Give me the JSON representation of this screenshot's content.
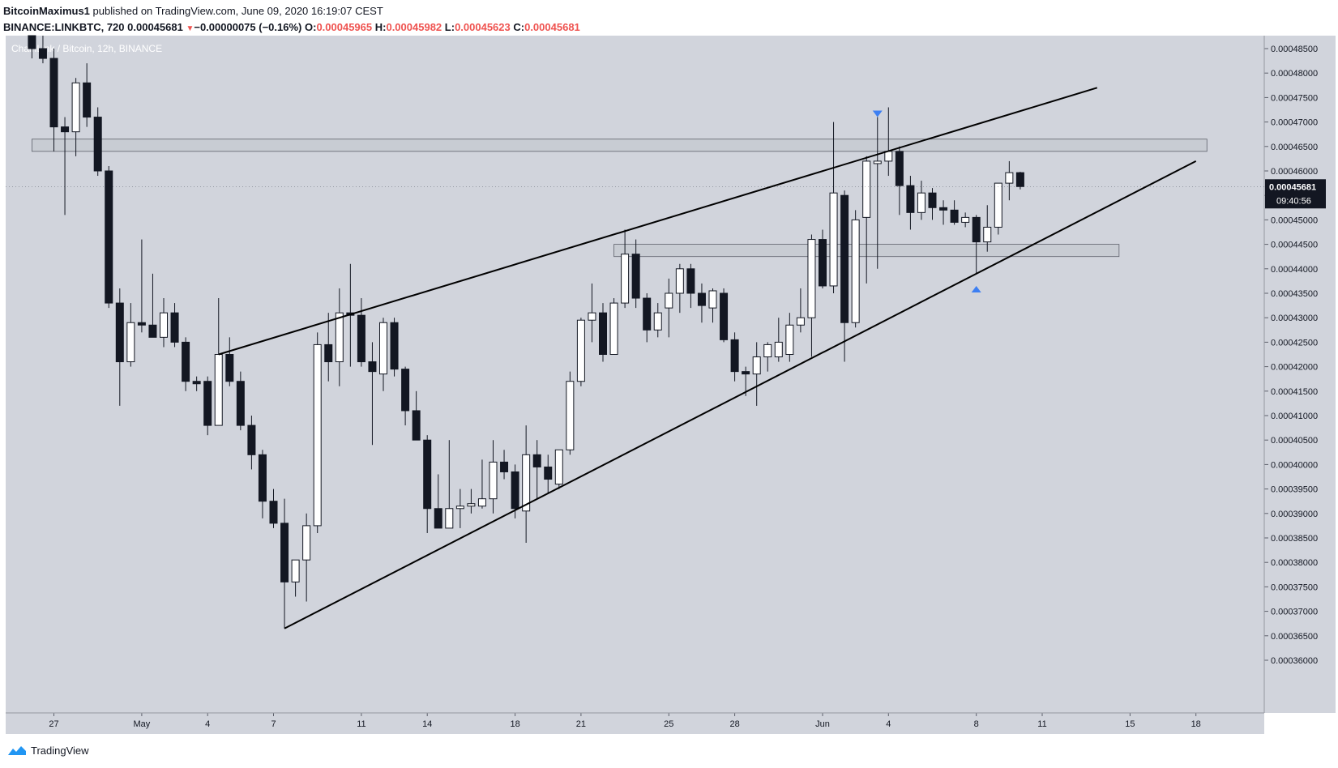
{
  "header": {
    "author": "BitcoinMaximus1",
    "published_text": "published on TradingView.com, June 09, 2020 16:19:07 CEST",
    "symbol": "BINANCE:LINKBTC, 720",
    "last": "0.00045681",
    "change": "−0.00000075 (−0.16%)",
    "o_label": "O:",
    "o": "0.00045965",
    "h_label": "H:",
    "h": "0.00045982",
    "l_label": "L:",
    "l": "0.00045623",
    "c_label": "C:",
    "c": "0.00045681"
  },
  "footer": {
    "brand": "TradingView"
  },
  "colors": {
    "background": "#d1d4dc",
    "bull": "#ffffff",
    "bear": "#131722",
    "marker": "#3d7ff2",
    "zone": "#c1c4cc",
    "red": "#ef5350"
  },
  "chart_data": {
    "type": "candlestick",
    "title": "ChainLink / Bitcoin, 12h, BINANCE",
    "interval": "12h",
    "ylim": [
      0.0003575,
      0.0004875
    ],
    "y_ticks": [
      "0.00048500",
      "0.00048000",
      "0.00047500",
      "0.00047000",
      "0.00046500",
      "0.00046000",
      "0.00045500",
      "0.00045000",
      "0.00044500",
      "0.00044000",
      "0.00043500",
      "0.00043000",
      "0.00042500",
      "0.00042000",
      "0.00041500",
      "0.00041000",
      "0.00040500",
      "0.00040000",
      "0.00039500",
      "0.00039000",
      "0.00038500",
      "0.00038000",
      "0.00037500",
      "0.00037000",
      "0.00036500",
      "0.00036000"
    ],
    "x_ticks": [
      {
        "label": "27",
        "date": "2020-04-27"
      },
      {
        "label": "May",
        "date": "2020-05-01"
      },
      {
        "label": "4",
        "date": "2020-05-04"
      },
      {
        "label": "7",
        "date": "2020-05-07"
      },
      {
        "label": "11",
        "date": "2020-05-11"
      },
      {
        "label": "14",
        "date": "2020-05-14"
      },
      {
        "label": "18",
        "date": "2020-05-18"
      },
      {
        "label": "21",
        "date": "2020-05-21"
      },
      {
        "label": "25",
        "date": "2020-05-25"
      },
      {
        "label": "28",
        "date": "2020-05-28"
      },
      {
        "label": "Jun",
        "date": "2020-06-01"
      },
      {
        "label": "4",
        "date": "2020-06-04"
      },
      {
        "label": "8",
        "date": "2020-06-08"
      },
      {
        "label": "11",
        "date": "2020-06-11"
      },
      {
        "label": "15",
        "date": "2020-06-15"
      },
      {
        "label": "18",
        "date": "2020-06-18"
      }
    ],
    "candles": [
      {
        "t": "2020-04-26 00:00",
        "o": 0.000489,
        "h": 0.00049,
        "l": 0.000483,
        "c": 0.000485
      },
      {
        "t": "2020-04-26 12:00",
        "o": 0.000485,
        "h": 0.00049,
        "l": 0.000482,
        "c": 0.000483
      },
      {
        "t": "2020-04-27 00:00",
        "o": 0.000483,
        "h": 0.000485,
        "l": 0.000464,
        "c": 0.000469
      },
      {
        "t": "2020-04-27 12:00",
        "o": 0.000469,
        "h": 0.000471,
        "l": 0.000451,
        "c": 0.000468
      },
      {
        "t": "2020-04-28 00:00",
        "o": 0.000468,
        "h": 0.000479,
        "l": 0.000463,
        "c": 0.000478
      },
      {
        "t": "2020-04-28 12:00",
        "o": 0.000478,
        "h": 0.000482,
        "l": 0.000469,
        "c": 0.000471
      },
      {
        "t": "2020-04-29 00:00",
        "o": 0.000471,
        "h": 0.000473,
        "l": 0.000459,
        "c": 0.00046
      },
      {
        "t": "2020-04-29 12:00",
        "o": 0.00046,
        "h": 0.000461,
        "l": 0.000432,
        "c": 0.000433
      },
      {
        "t": "2020-04-30 00:00",
        "o": 0.000433,
        "h": 0.000436,
        "l": 0.000412,
        "c": 0.000421
      },
      {
        "t": "2020-04-30 12:00",
        "o": 0.000421,
        "h": 0.000433,
        "l": 0.00042,
        "c": 0.000429
      },
      {
        "t": "2020-05-01 00:00",
        "o": 0.000429,
        "h": 0.000446,
        "l": 0.000427,
        "c": 0.0004285
      },
      {
        "t": "2020-05-01 12:00",
        "o": 0.0004285,
        "h": 0.000439,
        "l": 0.000426,
        "c": 0.000426
      },
      {
        "t": "2020-05-02 00:00",
        "o": 0.000426,
        "h": 0.000434,
        "l": 0.000424,
        "c": 0.000431
      },
      {
        "t": "2020-05-02 12:00",
        "o": 0.000431,
        "h": 0.000433,
        "l": 0.000424,
        "c": 0.000425
      },
      {
        "t": "2020-05-03 00:00",
        "o": 0.000425,
        "h": 0.000426,
        "l": 0.000415,
        "c": 0.000417
      },
      {
        "t": "2020-05-03 12:00",
        "o": 0.000417,
        "h": 0.000418,
        "l": 0.000415,
        "c": 0.0004165
      },
      {
        "t": "2020-05-04 00:00",
        "o": 0.000417,
        "h": 0.000418,
        "l": 0.000406,
        "c": 0.000408
      },
      {
        "t": "2020-05-04 12:00",
        "o": 0.000408,
        "h": 0.000434,
        "l": 0.000408,
        "c": 0.0004225
      },
      {
        "t": "2020-05-05 00:00",
        "o": 0.0004225,
        "h": 0.000426,
        "l": 0.000416,
        "c": 0.000417
      },
      {
        "t": "2020-05-05 12:00",
        "o": 0.000417,
        "h": 0.000419,
        "l": 0.000407,
        "c": 0.000408
      },
      {
        "t": "2020-05-06 00:00",
        "o": 0.000408,
        "h": 0.00041,
        "l": 0.000399,
        "c": 0.000402
      },
      {
        "t": "2020-05-06 12:00",
        "o": 0.000402,
        "h": 0.000403,
        "l": 0.000389,
        "c": 0.0003925
      },
      {
        "t": "2020-05-07 00:00",
        "o": 0.0003925,
        "h": 0.000395,
        "l": 0.000387,
        "c": 0.000388
      },
      {
        "t": "2020-05-07 12:00",
        "o": 0.000388,
        "h": 0.000393,
        "l": 0.0003665,
        "c": 0.000376
      },
      {
        "t": "2020-05-08 00:00",
        "o": 0.000376,
        "h": 0.00038,
        "l": 0.000373,
        "c": 0.0003805
      },
      {
        "t": "2020-05-08 12:00",
        "o": 0.0003805,
        "h": 0.00039,
        "l": 0.000372,
        "c": 0.0003875
      },
      {
        "t": "2020-05-09 00:00",
        "o": 0.0003875,
        "h": 0.000427,
        "l": 0.000386,
        "c": 0.0004245
      },
      {
        "t": "2020-05-09 12:00",
        "o": 0.0004245,
        "h": 0.000431,
        "l": 0.000417,
        "c": 0.000421
      },
      {
        "t": "2020-05-10 00:00",
        "o": 0.000421,
        "h": 0.000436,
        "l": 0.000416,
        "c": 0.000431
      },
      {
        "t": "2020-05-10 12:00",
        "o": 0.000431,
        "h": 0.000441,
        "l": 0.00042,
        "c": 0.0004305
      },
      {
        "t": "2020-05-11 00:00",
        "o": 0.0004305,
        "h": 0.000434,
        "l": 0.00042,
        "c": 0.000421
      },
      {
        "t": "2020-05-11 12:00",
        "o": 0.000421,
        "h": 0.000425,
        "l": 0.000404,
        "c": 0.000419
      },
      {
        "t": "2020-05-12 00:00",
        "o": 0.0004185,
        "h": 0.00043,
        "l": 0.000415,
        "c": 0.000429
      },
      {
        "t": "2020-05-12 12:00",
        "o": 0.000429,
        "h": 0.00043,
        "l": 0.000418,
        "c": 0.0004195
      },
      {
        "t": "2020-05-13 00:00",
        "o": 0.0004195,
        "h": 0.00042,
        "l": 0.000408,
        "c": 0.000411
      },
      {
        "t": "2020-05-13 12:00",
        "o": 0.000411,
        "h": 0.000415,
        "l": 0.000405,
        "c": 0.000405
      },
      {
        "t": "2020-05-14 00:00",
        "o": 0.000405,
        "h": 0.000406,
        "l": 0.000386,
        "c": 0.000391
      },
      {
        "t": "2020-05-14 12:00",
        "o": 0.000391,
        "h": 0.000398,
        "l": 0.000388,
        "c": 0.000387
      },
      {
        "t": "2020-05-15 00:00",
        "o": 0.000387,
        "h": 0.000405,
        "l": 0.000388,
        "c": 0.000391
      },
      {
        "t": "2020-05-15 12:00",
        "o": 0.000391,
        "h": 0.000395,
        "l": 0.000387,
        "c": 0.0003915
      },
      {
        "t": "2020-05-16 00:00",
        "o": 0.0003915,
        "h": 0.000395,
        "l": 0.00039,
        "c": 0.000392
      },
      {
        "t": "2020-05-16 12:00",
        "o": 0.0003915,
        "h": 0.000401,
        "l": 0.000391,
        "c": 0.000393
      },
      {
        "t": "2020-05-17 00:00",
        "o": 0.000393,
        "h": 0.000405,
        "l": 0.00039,
        "c": 0.0004005
      },
      {
        "t": "2020-05-17 12:00",
        "o": 0.0004005,
        "h": 0.000403,
        "l": 0.000397,
        "c": 0.0003985
      },
      {
        "t": "2020-05-18 00:00",
        "o": 0.0003985,
        "h": 0.0004,
        "l": 0.000389,
        "c": 0.000391
      },
      {
        "t": "2020-05-18 12:00",
        "o": 0.0003905,
        "h": 0.000408,
        "l": 0.000384,
        "c": 0.000402
      },
      {
        "t": "2020-05-19 00:00",
        "o": 0.000402,
        "h": 0.000405,
        "l": 0.000393,
        "c": 0.0003995
      },
      {
        "t": "2020-05-19 12:00",
        "o": 0.0003995,
        "h": 0.000402,
        "l": 0.000394,
        "c": 0.000397
      },
      {
        "t": "2020-05-20 00:00",
        "o": 0.000396,
        "h": 0.000403,
        "l": 0.000395,
        "c": 0.000403
      },
      {
        "t": "2020-05-20 12:00",
        "o": 0.000403,
        "h": 0.000419,
        "l": 0.000402,
        "c": 0.000417
      },
      {
        "t": "2020-05-21 00:00",
        "o": 0.000417,
        "h": 0.00043,
        "l": 0.000416,
        "c": 0.0004295
      },
      {
        "t": "2020-05-21 12:00",
        "o": 0.0004295,
        "h": 0.000437,
        "l": 0.000425,
        "c": 0.000431
      },
      {
        "t": "2020-05-22 00:00",
        "o": 0.000431,
        "h": 0.000433,
        "l": 0.000421,
        "c": 0.0004225
      },
      {
        "t": "2020-05-22 12:00",
        "o": 0.0004225,
        "h": 0.000434,
        "l": 0.000423,
        "c": 0.000433
      },
      {
        "t": "2020-05-23 00:00",
        "o": 0.000433,
        "h": 0.000448,
        "l": 0.000432,
        "c": 0.000443
      },
      {
        "t": "2020-05-23 12:00",
        "o": 0.000443,
        "h": 0.000446,
        "l": 0.000432,
        "c": 0.000434
      },
      {
        "t": "2020-05-24 00:00",
        "o": 0.000434,
        "h": 0.000435,
        "l": 0.000425,
        "c": 0.0004275
      },
      {
        "t": "2020-05-24 12:00",
        "o": 0.0004275,
        "h": 0.000433,
        "l": 0.000426,
        "c": 0.000431
      },
      {
        "t": "2020-05-25 00:00",
        "o": 0.000432,
        "h": 0.000438,
        "l": 0.000426,
        "c": 0.000435
      },
      {
        "t": "2020-05-25 12:00",
        "o": 0.000435,
        "h": 0.000441,
        "l": 0.000431,
        "c": 0.00044
      },
      {
        "t": "2020-05-26 00:00",
        "o": 0.00044,
        "h": 0.000441,
        "l": 0.000432,
        "c": 0.000435
      },
      {
        "t": "2020-05-26 12:00",
        "o": 0.000435,
        "h": 0.000437,
        "l": 0.000429,
        "c": 0.0004325
      },
      {
        "t": "2020-05-27 00:00",
        "o": 0.000432,
        "h": 0.000436,
        "l": 0.000429,
        "c": 0.0004355
      },
      {
        "t": "2020-05-27 12:00",
        "o": 0.000435,
        "h": 0.000436,
        "l": 0.000425,
        "c": 0.0004255
      },
      {
        "t": "2020-05-28 00:00",
        "o": 0.0004255,
        "h": 0.000427,
        "l": 0.000417,
        "c": 0.000419
      },
      {
        "t": "2020-05-28 12:00",
        "o": 0.000419,
        "h": 0.00042,
        "l": 0.000414,
        "c": 0.0004185
      },
      {
        "t": "2020-05-29 00:00",
        "o": 0.0004185,
        "h": 0.000425,
        "l": 0.000412,
        "c": 0.000422
      },
      {
        "t": "2020-05-29 12:00",
        "o": 0.000422,
        "h": 0.000425,
        "l": 0.000419,
        "c": 0.0004245
      },
      {
        "t": "2020-05-30 00:00",
        "o": 0.000422,
        "h": 0.00043,
        "l": 0.000421,
        "c": 0.000425
      },
      {
        "t": "2020-05-30 12:00",
        "o": 0.0004225,
        "h": 0.000431,
        "l": 0.000421,
        "c": 0.0004285
      },
      {
        "t": "2020-05-31 00:00",
        "o": 0.0004285,
        "h": 0.000436,
        "l": 0.000427,
        "c": 0.00043
      },
      {
        "t": "2020-05-31 12:00",
        "o": 0.00043,
        "h": 0.000447,
        "l": 0.000422,
        "c": 0.000446
      },
      {
        "t": "2020-06-01 00:00",
        "o": 0.000446,
        "h": 0.000448,
        "l": 0.000436,
        "c": 0.0004365
      },
      {
        "t": "2020-06-01 12:00",
        "o": 0.0004365,
        "h": 0.00047,
        "l": 0.000435,
        "c": 0.0004555
      },
      {
        "t": "2020-06-02 00:00",
        "o": 0.000455,
        "h": 0.000456,
        "l": 0.000421,
        "c": 0.000429
      },
      {
        "t": "2020-06-02 12:00",
        "o": 0.000429,
        "h": 0.000452,
        "l": 0.000428,
        "c": 0.00045
      },
      {
        "t": "2020-06-03 00:00",
        "o": 0.0004505,
        "h": 0.000463,
        "l": 0.000437,
        "c": 0.000462
      },
      {
        "t": "2020-06-03 12:00",
        "o": 0.0004615,
        "h": 0.000471,
        "l": 0.00044,
        "c": 0.000462
      },
      {
        "t": "2020-06-04 00:00",
        "o": 0.000462,
        "h": 0.000473,
        "l": 0.000459,
        "c": 0.000464
      },
      {
        "t": "2020-06-04 12:00",
        "o": 0.000464,
        "h": 0.000465,
        "l": 0.000451,
        "c": 0.000457
      },
      {
        "t": "2020-06-05 00:00",
        "o": 0.000457,
        "h": 0.000459,
        "l": 0.000448,
        "c": 0.0004515
      },
      {
        "t": "2020-06-05 12:00",
        "o": 0.0004515,
        "h": 0.000458,
        "l": 0.00045,
        "c": 0.0004555
      },
      {
        "t": "2020-06-06 00:00",
        "o": 0.0004555,
        "h": 0.0004565,
        "l": 0.00045,
        "c": 0.0004525
      },
      {
        "t": "2020-06-06 12:00",
        "o": 0.0004525,
        "h": 0.000454,
        "l": 0.000449,
        "c": 0.000452
      },
      {
        "t": "2020-06-07 00:00",
        "o": 0.000452,
        "h": 0.000454,
        "l": 0.000449,
        "c": 0.0004495
      },
      {
        "t": "2020-06-07 12:00",
        "o": 0.0004495,
        "h": 0.0004515,
        "l": 0.0004485,
        "c": 0.0004505
      },
      {
        "t": "2020-06-08 00:00",
        "o": 0.0004505,
        "h": 0.000451,
        "l": 0.000439,
        "c": 0.0004455
      },
      {
        "t": "2020-06-08 12:00",
        "o": 0.0004455,
        "h": 0.000453,
        "l": 0.0004435,
        "c": 0.0004485
      },
      {
        "t": "2020-06-09 00:00",
        "o": 0.0004485,
        "h": 0.0004575,
        "l": 0.000447,
        "c": 0.0004575
      },
      {
        "t": "2020-06-09 12:00",
        "o": 0.0004575,
        "h": 0.000462,
        "l": 0.000454,
        "c": 0.00045965
      },
      {
        "t": "2020-06-10 00:00",
        "o": 0.00045965,
        "h": 0.00045982,
        "l": 0.00045623,
        "c": 0.00045681
      }
    ],
    "price_label": "0.00045681",
    "countdown": "09:40:56",
    "trendlines": [
      {
        "name": "upper-wedge-line",
        "from": {
          "t": "2020-05-04 12:00",
          "p": 0.0004225
        },
        "to": {
          "t": "2020-06-13 12:00",
          "p": 0.000477
        }
      },
      {
        "name": "lower-wedge-line",
        "from": {
          "t": "2020-05-07 12:00",
          "p": 0.0003665
        },
        "to": {
          "t": "2020-06-18 00:00",
          "p": 0.000462
        }
      }
    ],
    "zones": [
      {
        "name": "resistance-zone",
        "from": "2020-04-26 00:00",
        "to": "2020-06-18 12:00",
        "top": 0.0004665,
        "bottom": 0.000464
      },
      {
        "name": "support-zone",
        "from": "2020-05-22 12:00",
        "to": "2020-06-14 12:00",
        "top": 0.000445,
        "bottom": 0.0004425
      }
    ],
    "markers": [
      {
        "name": "down-arrow-marker",
        "t": "2020-06-03 12:00",
        "p": 0.0004715,
        "dir": "down"
      },
      {
        "name": "up-arrow-marker",
        "t": "2020-06-08 00:00",
        "p": 0.000436,
        "dir": "up"
      }
    ]
  }
}
